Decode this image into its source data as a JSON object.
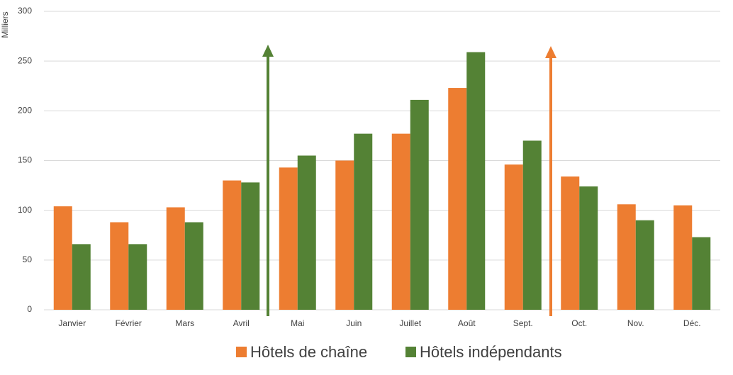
{
  "chart_data": {
    "type": "bar",
    "y_axis_label": "Milliers",
    "categories": [
      "Janvier",
      "Février",
      "Mars",
      "Avril",
      "Mai",
      "Juin",
      "Juillet",
      "Août",
      "Sept.",
      "Oct.",
      "Nov.",
      "Déc."
    ],
    "series": [
      {
        "name": "Hôtels de chaîne",
        "color": "#ed7d31",
        "values": [
          104,
          88,
          103,
          130,
          143,
          150,
          177,
          223,
          146,
          134,
          106,
          105
        ]
      },
      {
        "name": "Hôtels indépendants",
        "color": "#548235",
        "values": [
          66,
          66,
          88,
          128,
          155,
          177,
          211,
          259,
          170,
          124,
          90,
          73
        ]
      }
    ],
    "ylim": [
      0,
      300
    ],
    "yticks": [
      0,
      50,
      100,
      150,
      200,
      250,
      300
    ],
    "grid": true
  }
}
